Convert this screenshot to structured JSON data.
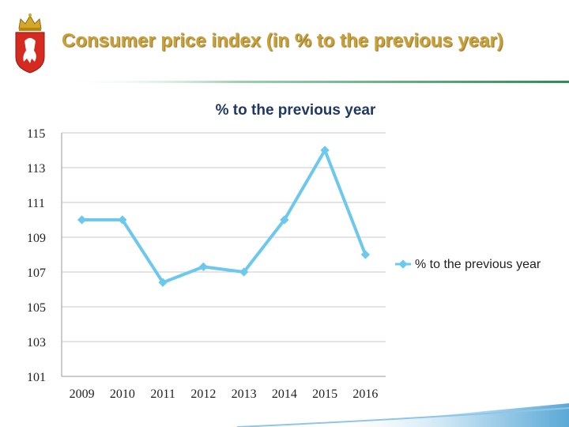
{
  "slide": {
    "title": "Consumer price index (in % to the previous year)"
  },
  "colors": {
    "title": "#c9a13a",
    "series": "#6dc8ee",
    "grid": "#c8c8c8",
    "rule": "#2e8b57"
  },
  "chart_data": {
    "type": "line",
    "title": "% to the previous year",
    "categories": [
      "2009",
      "2010",
      "2011",
      "2012",
      "2013",
      "2014",
      "2015",
      "2016"
    ],
    "series": [
      {
        "name": "% to the previous year",
        "values": [
          110,
          110,
          106.4,
          107.3,
          107,
          110,
          114,
          108
        ]
      }
    ],
    "ylim": [
      101,
      115
    ],
    "yticks": [
      101,
      103,
      105,
      107,
      109,
      111,
      113,
      115
    ],
    "grid": true,
    "legend": "right",
    "xlabel": "",
    "ylabel": ""
  }
}
